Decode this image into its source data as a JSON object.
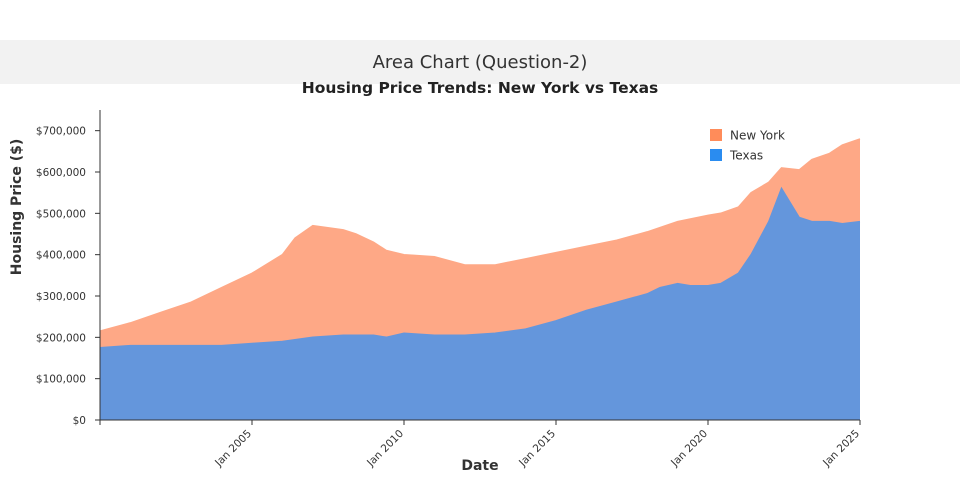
{
  "page": {
    "header": "Area Chart (Question-2)"
  },
  "chart_data": {
    "type": "area",
    "title": "Housing Price Trends: New York vs Texas",
    "xlabel": "Date",
    "ylabel": "Housing Price ($)",
    "x_range": [
      "2000-01",
      "2025-01"
    ],
    "ylim": [
      0,
      750000
    ],
    "y_ticks": [
      0,
      100000,
      200000,
      300000,
      400000,
      500000,
      600000,
      700000
    ],
    "y_tick_labels": [
      "$0",
      "$100,000",
      "$200,000",
      "$300,000",
      "$400,000",
      "$500,000",
      "$600,000",
      "$700,000"
    ],
    "x_ticks": [
      "2005-01",
      "2010-01",
      "2015-01",
      "2020-01",
      "2025-01"
    ],
    "x_tick_labels": [
      "Jan 2005",
      "Jan 2010",
      "Jan 2015",
      "Jan 2020",
      "Jan 2025"
    ],
    "legend": {
      "position": "top-right"
    },
    "grid": false,
    "series": [
      {
        "name": "New York",
        "color": "#ff8c5a",
        "x": [
          "2000-01",
          "2001-01",
          "2002-01",
          "2003-01",
          "2004-01",
          "2005-01",
          "2006-01",
          "2006-06",
          "2007-01",
          "2008-01",
          "2008-06",
          "2009-01",
          "2009-06",
          "2010-01",
          "2011-01",
          "2012-01",
          "2013-01",
          "2014-01",
          "2015-01",
          "2016-01",
          "2017-01",
          "2018-01",
          "2019-01",
          "2020-01",
          "2020-06",
          "2021-01",
          "2021-06",
          "2022-01",
          "2022-06",
          "2023-01",
          "2023-06",
          "2024-01",
          "2024-06",
          "2025-01"
        ],
        "values": [
          215000,
          235000,
          260000,
          285000,
          320000,
          355000,
          400000,
          440000,
          470000,
          460000,
          450000,
          430000,
          410000,
          400000,
          395000,
          375000,
          375000,
          390000,
          405000,
          420000,
          435000,
          455000,
          480000,
          495000,
          500000,
          515000,
          550000,
          575000,
          610000,
          605000,
          630000,
          645000,
          665000,
          680000
        ]
      },
      {
        "name": "Texas",
        "color": "#2a8cf0",
        "x": [
          "2000-01",
          "2001-01",
          "2002-01",
          "2003-01",
          "2004-01",
          "2005-01",
          "2006-01",
          "2007-01",
          "2008-01",
          "2009-01",
          "2009-06",
          "2010-01",
          "2011-01",
          "2012-01",
          "2013-01",
          "2014-01",
          "2015-01",
          "2016-01",
          "2017-01",
          "2018-01",
          "2018-06",
          "2019-01",
          "2019-06",
          "2020-01",
          "2020-06",
          "2021-01",
          "2021-06",
          "2022-01",
          "2022-06",
          "2023-01",
          "2023-06",
          "2024-01",
          "2024-06",
          "2025-01"
        ],
        "values": [
          175000,
          180000,
          180000,
          180000,
          180000,
          185000,
          190000,
          200000,
          205000,
          205000,
          200000,
          210000,
          205000,
          205000,
          210000,
          220000,
          240000,
          265000,
          285000,
          305000,
          320000,
          330000,
          325000,
          325000,
          330000,
          355000,
          400000,
          480000,
          560000,
          490000,
          480000,
          480000,
          475000,
          480000
        ]
      }
    ]
  }
}
